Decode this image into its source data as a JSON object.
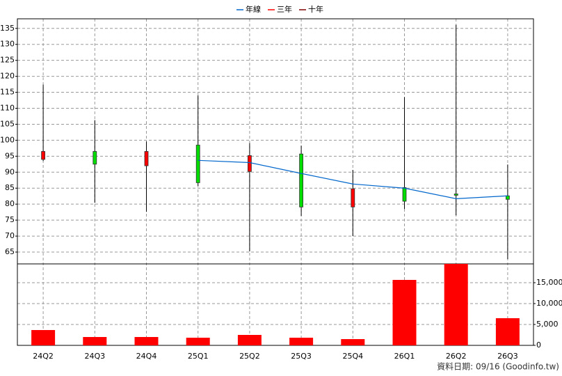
{
  "chart_data": {
    "type": "candlestick",
    "categories": [
      "24Q2",
      "24Q3",
      "24Q4",
      "25Q1",
      "25Q2",
      "25Q3",
      "25Q4",
      "26Q1",
      "26Q2",
      "26Q3"
    ],
    "open": [
      94,
      96.5,
      92,
      98.5,
      90.2,
      95.7,
      79.1,
      85.2,
      83.2,
      82.6
    ],
    "high": [
      117.4,
      106.3,
      99.6,
      114.1,
      99.1,
      98.3,
      90.7,
      113.5,
      136.1,
      92.4
    ],
    "low": [
      93.5,
      80.4,
      77.6,
      85.7,
      65.2,
      76.3,
      70,
      78.5,
      76.5,
      62.8
    ],
    "close": [
      96.5,
      92.5,
      96.5,
      86.7,
      95.2,
      79.1,
      84.8,
      80.9,
      82.9,
      81.5
    ],
    "up_color": "#ff0000",
    "down_color": "#00dd00",
    "series": [
      {
        "name": "年線",
        "color": "#0066cc",
        "values": [
          null,
          null,
          null,
          93.7,
          93,
          89.6,
          86.3,
          85,
          81.7,
          82.6
        ]
      },
      {
        "name": "三年",
        "color": "#ff0000",
        "values": [
          null,
          null,
          null,
          null,
          null,
          null,
          null,
          null,
          null,
          null
        ]
      },
      {
        "name": "十年",
        "color": "#800000",
        "values": [
          null,
          null,
          null,
          null,
          null,
          null,
          null,
          null,
          null,
          null
        ]
      }
    ],
    "ylim": [
      61.3,
      138
    ],
    "yticks": [
      65,
      70,
      75,
      80,
      85,
      90,
      95,
      100,
      105,
      110,
      115,
      120,
      125,
      130,
      135
    ],
    "volume": {
      "color": "#ff0000",
      "values": [
        3667,
        2000,
        2000,
        1833,
        2500,
        1833,
        1500,
        15667,
        19500,
        6500
      ]
    },
    "y2lim": [
      0,
      19500
    ],
    "y2ticks": [
      0,
      {
        "value": 5000,
        "label": "5,000"
      },
      {
        "value": 10000,
        "label": "10,000"
      },
      {
        "value": 15000,
        "label": "15,000"
      }
    ],
    "grid": true,
    "note": "資料日期: 09/16  (Goodinfo.tw)"
  }
}
